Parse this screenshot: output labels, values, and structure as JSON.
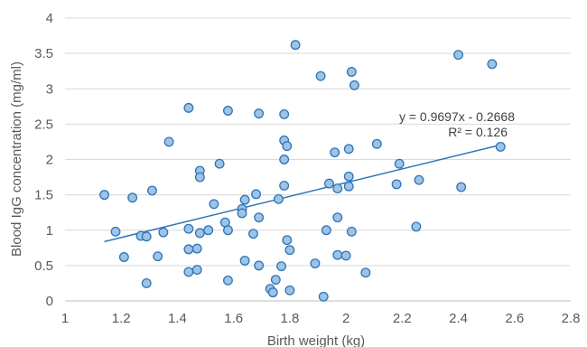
{
  "chart_data": {
    "type": "scatter",
    "xlabel": "Birth weight (kg)",
    "ylabel": "Blood IgG concentration (mg/ml)",
    "xlim": [
      1,
      2.8
    ],
    "ylim": [
      0,
      4
    ],
    "x_ticks": [
      "1",
      "1.2",
      "1.4",
      "1.6",
      "1.8",
      "2",
      "2.2",
      "2.4",
      "2.6",
      "2.8"
    ],
    "y_ticks": [
      "0",
      "0.5",
      "1",
      "1.5",
      "2",
      "2.5",
      "3",
      "3.5",
      "4"
    ],
    "grid": true,
    "equation_label": "y = 0.9697x  - 0.2668",
    "r2_label": "R² = 0.126",
    "trendline": {
      "slope": 0.9697,
      "intercept": -0.2668,
      "x_range": [
        1.14,
        2.55
      ]
    },
    "colors": {
      "marker_fill": "#9dc3e6",
      "marker_stroke": "#2e75b6",
      "trendline": "#2e75b6",
      "gridline": "#d9d9d9",
      "axis": "#bfbfbf"
    },
    "points": [
      {
        "x": 1.14,
        "y": 1.5
      },
      {
        "x": 1.18,
        "y": 0.98
      },
      {
        "x": 1.21,
        "y": 0.62
      },
      {
        "x": 1.24,
        "y": 1.46
      },
      {
        "x": 1.27,
        "y": 0.92
      },
      {
        "x": 1.29,
        "y": 0.91
      },
      {
        "x": 1.29,
        "y": 0.25
      },
      {
        "x": 1.31,
        "y": 1.56
      },
      {
        "x": 1.33,
        "y": 0.63
      },
      {
        "x": 1.35,
        "y": 0.97
      },
      {
        "x": 1.37,
        "y": 2.25
      },
      {
        "x": 1.44,
        "y": 2.73
      },
      {
        "x": 1.44,
        "y": 1.02
      },
      {
        "x": 1.44,
        "y": 0.73
      },
      {
        "x": 1.44,
        "y": 0.41
      },
      {
        "x": 1.47,
        "y": 0.74
      },
      {
        "x": 1.47,
        "y": 0.44
      },
      {
        "x": 1.48,
        "y": 1.84
      },
      {
        "x": 1.48,
        "y": 1.75
      },
      {
        "x": 1.48,
        "y": 0.96
      },
      {
        "x": 1.51,
        "y": 1.0
      },
      {
        "x": 1.53,
        "y": 1.37
      },
      {
        "x": 1.55,
        "y": 1.94
      },
      {
        "x": 1.57,
        "y": 1.11
      },
      {
        "x": 1.58,
        "y": 1.0
      },
      {
        "x": 1.58,
        "y": 0.29
      },
      {
        "x": 1.58,
        "y": 2.69
      },
      {
        "x": 1.63,
        "y": 1.3
      },
      {
        "x": 1.63,
        "y": 1.24
      },
      {
        "x": 1.64,
        "y": 1.43
      },
      {
        "x": 1.64,
        "y": 0.57
      },
      {
        "x": 1.67,
        "y": 0.95
      },
      {
        "x": 1.68,
        "y": 1.51
      },
      {
        "x": 1.69,
        "y": 2.65
      },
      {
        "x": 1.69,
        "y": 1.18
      },
      {
        "x": 1.69,
        "y": 0.5
      },
      {
        "x": 1.73,
        "y": 0.17
      },
      {
        "x": 1.74,
        "y": 0.12
      },
      {
        "x": 1.75,
        "y": 0.3
      },
      {
        "x": 1.76,
        "y": 1.44
      },
      {
        "x": 1.77,
        "y": 0.49
      },
      {
        "x": 1.78,
        "y": 2.64
      },
      {
        "x": 1.78,
        "y": 2.27
      },
      {
        "x": 1.78,
        "y": 2.0
      },
      {
        "x": 1.78,
        "y": 1.63
      },
      {
        "x": 1.79,
        "y": 2.19
      },
      {
        "x": 1.79,
        "y": 0.86
      },
      {
        "x": 1.8,
        "y": 0.72
      },
      {
        "x": 1.8,
        "y": 0.15
      },
      {
        "x": 1.82,
        "y": 3.62
      },
      {
        "x": 1.89,
        "y": 0.53
      },
      {
        "x": 1.91,
        "y": 3.18
      },
      {
        "x": 1.92,
        "y": 0.06
      },
      {
        "x": 1.93,
        "y": 1.0
      },
      {
        "x": 1.94,
        "y": 1.66
      },
      {
        "x": 1.96,
        "y": 2.1
      },
      {
        "x": 1.97,
        "y": 1.59
      },
      {
        "x": 1.97,
        "y": 1.18
      },
      {
        "x": 1.97,
        "y": 0.65
      },
      {
        "x": 2.0,
        "y": 0.64
      },
      {
        "x": 2.01,
        "y": 2.15
      },
      {
        "x": 2.01,
        "y": 1.76
      },
      {
        "x": 2.01,
        "y": 1.62
      },
      {
        "x": 2.02,
        "y": 3.24
      },
      {
        "x": 2.02,
        "y": 0.98
      },
      {
        "x": 2.03,
        "y": 3.05
      },
      {
        "x": 2.07,
        "y": 0.4
      },
      {
        "x": 2.11,
        "y": 2.22
      },
      {
        "x": 2.18,
        "y": 1.65
      },
      {
        "x": 2.19,
        "y": 1.94
      },
      {
        "x": 2.25,
        "y": 1.05
      },
      {
        "x": 2.26,
        "y": 1.71
      },
      {
        "x": 2.4,
        "y": 3.48
      },
      {
        "x": 2.41,
        "y": 1.61
      },
      {
        "x": 2.52,
        "y": 3.35
      },
      {
        "x": 2.55,
        "y": 2.18
      }
    ]
  }
}
